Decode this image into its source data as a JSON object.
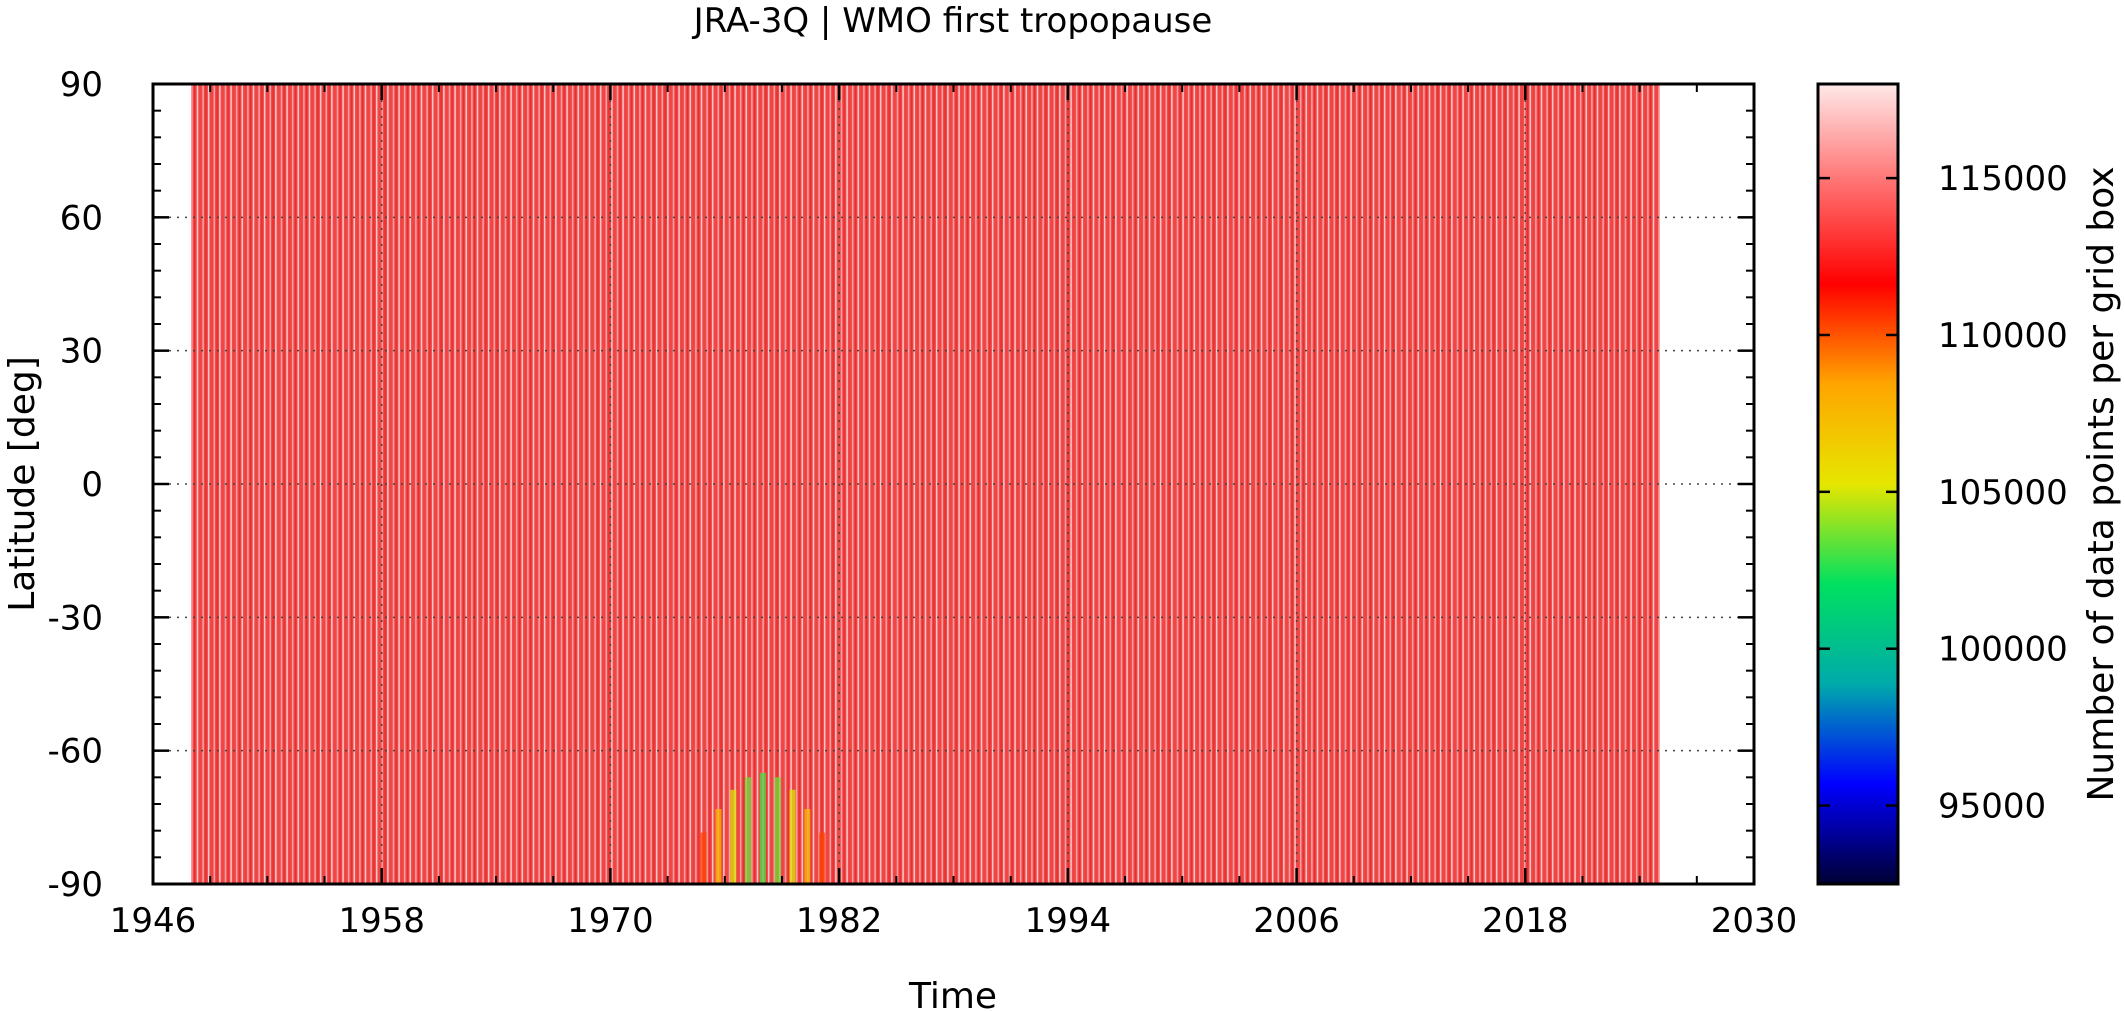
{
  "chart_data": {
    "type": "heatmap",
    "title": "JRA-3Q | WMO first tropopause",
    "xlabel": "Time",
    "ylabel": "Latitude [deg]",
    "colorbar_label": "Number of data points per grid box",
    "xlim": [
      1946,
      2030
    ],
    "ylim": [
      -90,
      90
    ],
    "x_ticks": [
      "1946",
      "1958",
      "1970",
      "1982",
      "1994",
      "2006",
      "2018",
      "2030"
    ],
    "x_tick_values": [
      1946,
      1958,
      1970,
      1982,
      1994,
      2006,
      2018,
      2030
    ],
    "y_ticks": [
      "-90",
      "-60",
      "-30",
      "0",
      "30",
      "60",
      "90"
    ],
    "y_tick_values": [
      -90,
      -60,
      -30,
      0,
      30,
      60,
      90
    ],
    "data_x_range": [
      1948,
      2025
    ],
    "colorbar_range": [
      92500,
      118000
    ],
    "colorbar_ticks": [
      "95000",
      "100000",
      "105000",
      "110000",
      "115000"
    ],
    "colorbar_tick_values": [
      95000,
      100000,
      105000,
      110000,
      115000
    ],
    "grid": "dotted",
    "legend": "colorbar-right",
    "colormap": [
      "#000033",
      "#0000ff",
      "#00aaaa",
      "#00e060",
      "#e6e600",
      "#ffa500",
      "#ff0000",
      "#ff7070",
      "#ffe8e8"
    ],
    "typical_value": 116700,
    "anomaly": {
      "x_range": [
        1974.5,
        1981.5
      ],
      "lat_range": [
        -90,
        -65
      ],
      "min_value": 103000
    }
  }
}
